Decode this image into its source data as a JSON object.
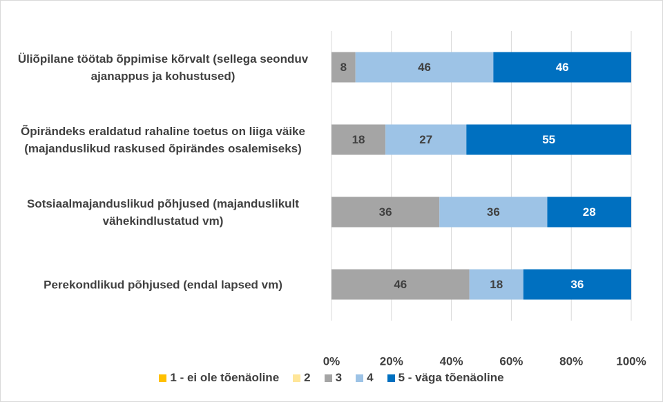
{
  "chart_data": {
    "type": "bar",
    "orientation": "horizontal",
    "stacked": true,
    "categories": [
      "Üliõpilane töötab õppimise kõrvalt (sellega seonduv ajanappus ja kohustused)",
      "Õpirändeks eraldatud rahaline toetus on liiga väike (majanduslikud raskused õpirändes osalemiseks)",
      "Sotsiaalmajanduslikud põhjused (majanduslikult vähekindlustatud vm)",
      "Perekondlikud põhjused (endal lapsed vm)"
    ],
    "series": [
      {
        "name": "1 - ei ole tõenäoline",
        "color": "#ffc000",
        "values": [
          0,
          0,
          0,
          0
        ]
      },
      {
        "name": "2",
        "color": "#ffe699",
        "values": [
          0,
          0,
          0,
          0
        ]
      },
      {
        "name": "3",
        "color": "#a5a5a5",
        "values": [
          8,
          18,
          36,
          46
        ]
      },
      {
        "name": "4",
        "color": "#9dc3e6",
        "values": [
          46,
          27,
          36,
          18
        ]
      },
      {
        "name": "5 - väga tõenäoline",
        "color": "#0070c0",
        "values": [
          46,
          55,
          28,
          36
        ]
      }
    ],
    "xlim": [
      0,
      100
    ],
    "xticks": [
      {
        "value": 0,
        "label": "0%"
      },
      {
        "value": 20,
        "label": "20%"
      },
      {
        "value": 40,
        "label": "40%"
      },
      {
        "value": 60,
        "label": "60%"
      },
      {
        "value": 80,
        "label": "80%"
      },
      {
        "value": 100,
        "label": "100%"
      }
    ],
    "grid": true,
    "legend": "bottom"
  }
}
